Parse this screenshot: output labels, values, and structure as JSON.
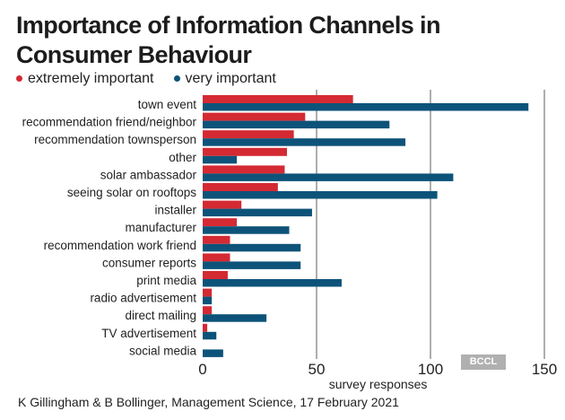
{
  "chart_data": {
    "type": "bar",
    "orientation": "horizontal",
    "title": "Importance of Information Channels in Consumer Behaviour",
    "xlabel": "survey responses",
    "ylabel": "",
    "xlim": [
      0,
      150
    ],
    "xticks": [
      0,
      50,
      100,
      150
    ],
    "grid": true,
    "legend_position": "top-left",
    "categories": [
      "town event",
      "recommendation friend/neighbor",
      "recommendation townsperson",
      "other",
      "solar ambassador",
      "seeing solar on rooftops",
      "installer",
      "manufacturer",
      "recommendation work friend",
      "consumer reports",
      "print media",
      "radio advertisement",
      "direct mailing",
      "TV advertisement",
      "social media"
    ],
    "series": [
      {
        "name": "extremely important",
        "color": "#d42a33",
        "values": [
          66,
          45,
          40,
          37,
          36,
          33,
          17,
          15,
          12,
          12,
          11,
          4,
          4,
          2,
          0
        ]
      },
      {
        "name": "very important",
        "color": "#0d5379",
        "values": [
          143,
          82,
          89,
          15,
          110,
          103,
          48,
          38,
          43,
          43,
          61,
          4,
          28,
          6,
          9
        ]
      }
    ]
  },
  "source": "K Gillingham & B Bollinger, Management Science, 17 February 2021",
  "watermark": "BCCL"
}
